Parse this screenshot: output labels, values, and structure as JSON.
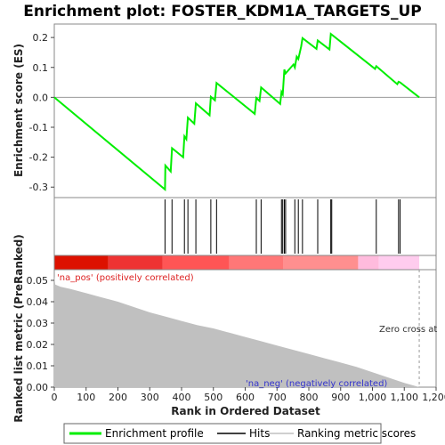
{
  "chart_data": {
    "type": "line",
    "title": "Enrichment plot: FOSTER_KDM1A_TARGETS_UP",
    "top_panel": {
      "ylabel": "Enrichment score (ES)",
      "ylim": [
        -0.335,
        0.245
      ],
      "y_ticks": [
        0.2,
        0.1,
        0.0,
        -0.1,
        -0.2,
        -0.3
      ],
      "y_tick_labels": [
        "0.2",
        "0.1",
        "0.0",
        "-0.1",
        "-0.2",
        "-0.3"
      ],
      "series": [
        {
          "name": "Enrichment profile",
          "color": "#00ee00",
          "x": [
            0,
            348,
            349,
            366,
            370,
            405,
            409,
            415,
            420,
            440,
            445,
            488,
            492,
            505,
            510,
            630,
            635,
            645,
            650,
            710,
            714,
            718,
            723,
            727,
            752,
            756,
            762,
            767,
            776,
            780,
            824,
            828,
            865,
            869,
            1008,
            1012,
            1078,
            1082,
            1087,
            1147
          ],
          "y": [
            0.0,
            -0.308,
            -0.228,
            -0.248,
            -0.17,
            -0.2,
            -0.13,
            -0.14,
            -0.068,
            -0.088,
            -0.02,
            -0.06,
            0.002,
            -0.01,
            0.048,
            -0.055,
            -0.002,
            -0.012,
            0.033,
            -0.022,
            0.018,
            0.01,
            0.093,
            0.08,
            0.11,
            0.1,
            0.136,
            0.128,
            0.17,
            0.198,
            0.162,
            0.19,
            0.16,
            0.212,
            0.095,
            0.104,
            0.044,
            0.052,
            0.05,
            0.0
          ]
        }
      ]
    },
    "hits": {
      "name": "Hits",
      "color": "#000000",
      "x": [
        348,
        370,
        409,
        420,
        445,
        492,
        510,
        635,
        650,
        714,
        718,
        723,
        727,
        756,
        767,
        780,
        828,
        869,
        872,
        1012,
        1082,
        1087
      ]
    },
    "color_bar": {
      "segments": [
        {
          "x0": 0,
          "x1": 170,
          "color": "#dd1100"
        },
        {
          "x0": 170,
          "x1": 340,
          "color": "#ee3333"
        },
        {
          "x0": 340,
          "x1": 550,
          "color": "#ff5555"
        },
        {
          "x0": 550,
          "x1": 720,
          "color": "#ff7777"
        },
        {
          "x0": 720,
          "x1": 955,
          "color": "#ff8f8f"
        },
        {
          "x0": 955,
          "x1": 1020,
          "color": "#ffbbdd"
        },
        {
          "x0": 1020,
          "x1": 1147,
          "color": "#ffccee"
        }
      ]
    },
    "bottom_panel": {
      "type": "area",
      "ylabel": "Ranked list metric (PreRanked)",
      "xlabel": "Rank in Ordered Dataset",
      "ylim": [
        0.0,
        0.055
      ],
      "xlim": [
        0,
        1200
      ],
      "y_ticks": [
        0.0,
        0.01,
        0.02,
        0.03,
        0.04,
        0.05
      ],
      "y_tick_labels": [
        "0.00",
        "0.01",
        "0.02",
        "0.03",
        "0.04",
        "0.05"
      ],
      "x_ticks": [
        0,
        100,
        200,
        300,
        400,
        500,
        600,
        700,
        800,
        900,
        1000,
        1100,
        1200
      ],
      "x_tick_labels": [
        "0",
        "100",
        "200",
        "300",
        "400",
        "500",
        "600",
        "700",
        "800",
        "900",
        "1,000",
        "1,100",
        "1,200"
      ],
      "series": [
        {
          "name": "Ranking metric scores",
          "color": "#c0c0c0",
          "x": [
            0,
            3,
            20,
            50,
            100,
            150,
            200,
            250,
            300,
            350,
            400,
            450,
            500,
            550,
            600,
            650,
            700,
            750,
            800,
            850,
            900,
            950,
            1000,
            1050,
            1100,
            1130,
            1147
          ],
          "y": [
            0.052,
            0.048,
            0.047,
            0.046,
            0.044,
            0.042,
            0.04,
            0.0375,
            0.035,
            0.033,
            0.031,
            0.029,
            0.0275,
            0.0255,
            0.0235,
            0.0215,
            0.0195,
            0.0175,
            0.0155,
            0.0135,
            0.0115,
            0.0095,
            0.007,
            0.0045,
            0.002,
            0.0007,
            0.0
          ]
        }
      ],
      "annotations": {
        "pos_label": "'na_pos' (positively correlated)",
        "neg_label": "'na_neg' (negatively correlated)",
        "zero_cross": "Zero cross at"
      },
      "zero_cross_x": 1147
    },
    "legend": {
      "placement": "bottom",
      "items": [
        {
          "label": "Enrichment profile",
          "color": "#00ee00"
        },
        {
          "label": "Hits",
          "color": "#000000"
        },
        {
          "label": "Ranking metric scores",
          "color": "#c0c0c0"
        }
      ]
    }
  }
}
